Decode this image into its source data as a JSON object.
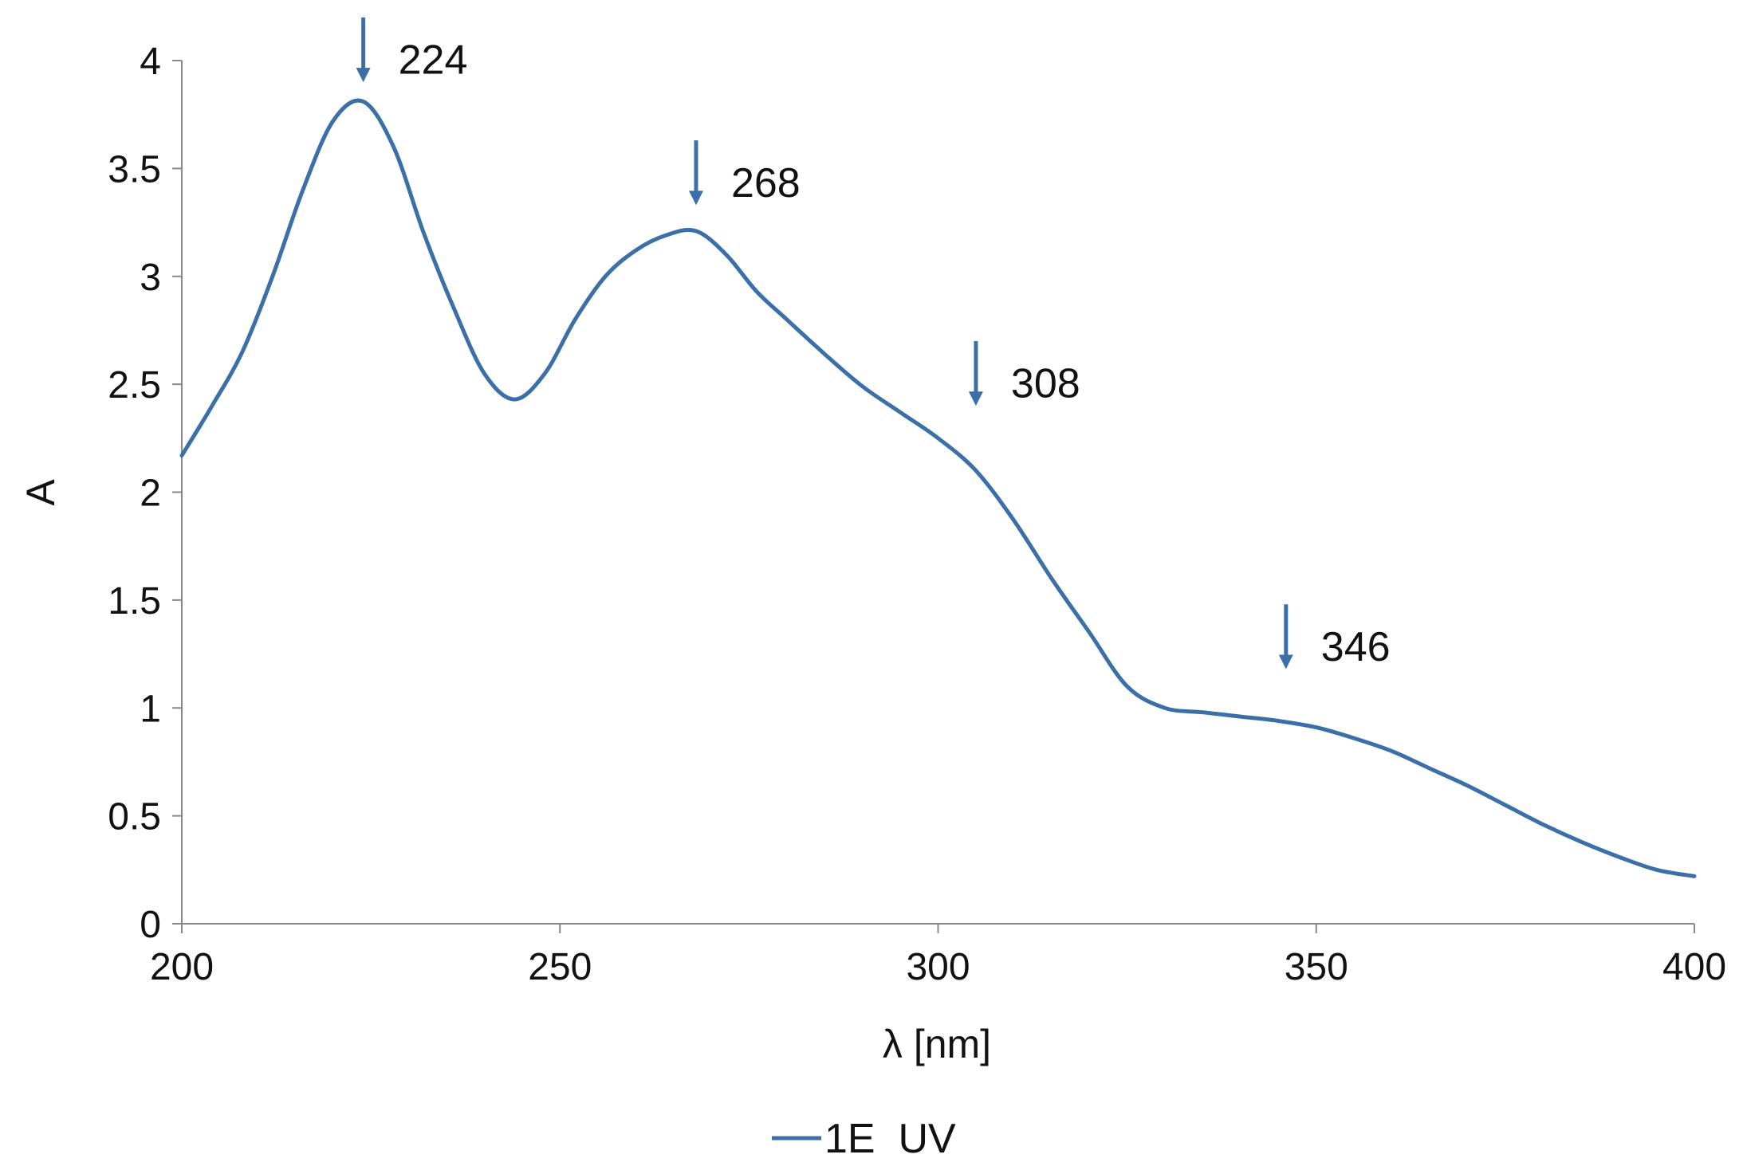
{
  "chart_data": {
    "type": "line",
    "xlabel": "λ [nm]",
    "ylabel": "A",
    "xlim": [
      200,
      400
    ],
    "ylim": [
      0,
      4
    ],
    "xticks": [
      "200",
      "250",
      "300",
      "350",
      "400"
    ],
    "yticks": [
      "0",
      "0.5",
      "1",
      "1.5",
      "2",
      "2.5",
      "3",
      "3.5",
      "4"
    ],
    "grid": false,
    "legend_position": "bottom-center",
    "series": [
      {
        "name": "1E  UV",
        "color": "#3b6fa8",
        "x": [
          200,
          204,
          208,
          212,
          216,
          220,
          224,
          228,
          232,
          236,
          240,
          244,
          248,
          252,
          256,
          260,
          264,
          268,
          272,
          276,
          280,
          285,
          290,
          295,
          300,
          305,
          310,
          315,
          320,
          325,
          330,
          335,
          340,
          345,
          350,
          355,
          360,
          365,
          370,
          375,
          380,
          385,
          390,
          395,
          400
        ],
        "y": [
          2.17,
          2.4,
          2.65,
          3.0,
          3.4,
          3.72,
          3.81,
          3.6,
          3.2,
          2.85,
          2.55,
          2.43,
          2.55,
          2.8,
          3.0,
          3.12,
          3.19,
          3.21,
          3.1,
          2.93,
          2.8,
          2.64,
          2.49,
          2.37,
          2.25,
          2.1,
          1.87,
          1.6,
          1.35,
          1.1,
          1.0,
          0.98,
          0.96,
          0.94,
          0.91,
          0.86,
          0.8,
          0.72,
          0.64,
          0.55,
          0.46,
          0.38,
          0.31,
          0.25,
          0.22
        ]
      }
    ],
    "annotations": [
      {
        "x": 224,
        "label": "224",
        "arrow_top": 4.2,
        "arrow_bottom": 3.9
      },
      {
        "x": 268,
        "label": "268",
        "arrow_top": 3.63,
        "arrow_bottom": 3.33
      },
      {
        "x": 305,
        "label": "308",
        "arrow_top": 2.7,
        "arrow_bottom": 2.4
      },
      {
        "x": 346,
        "label": "346",
        "arrow_top": 1.48,
        "arrow_bottom": 1.18
      }
    ]
  }
}
